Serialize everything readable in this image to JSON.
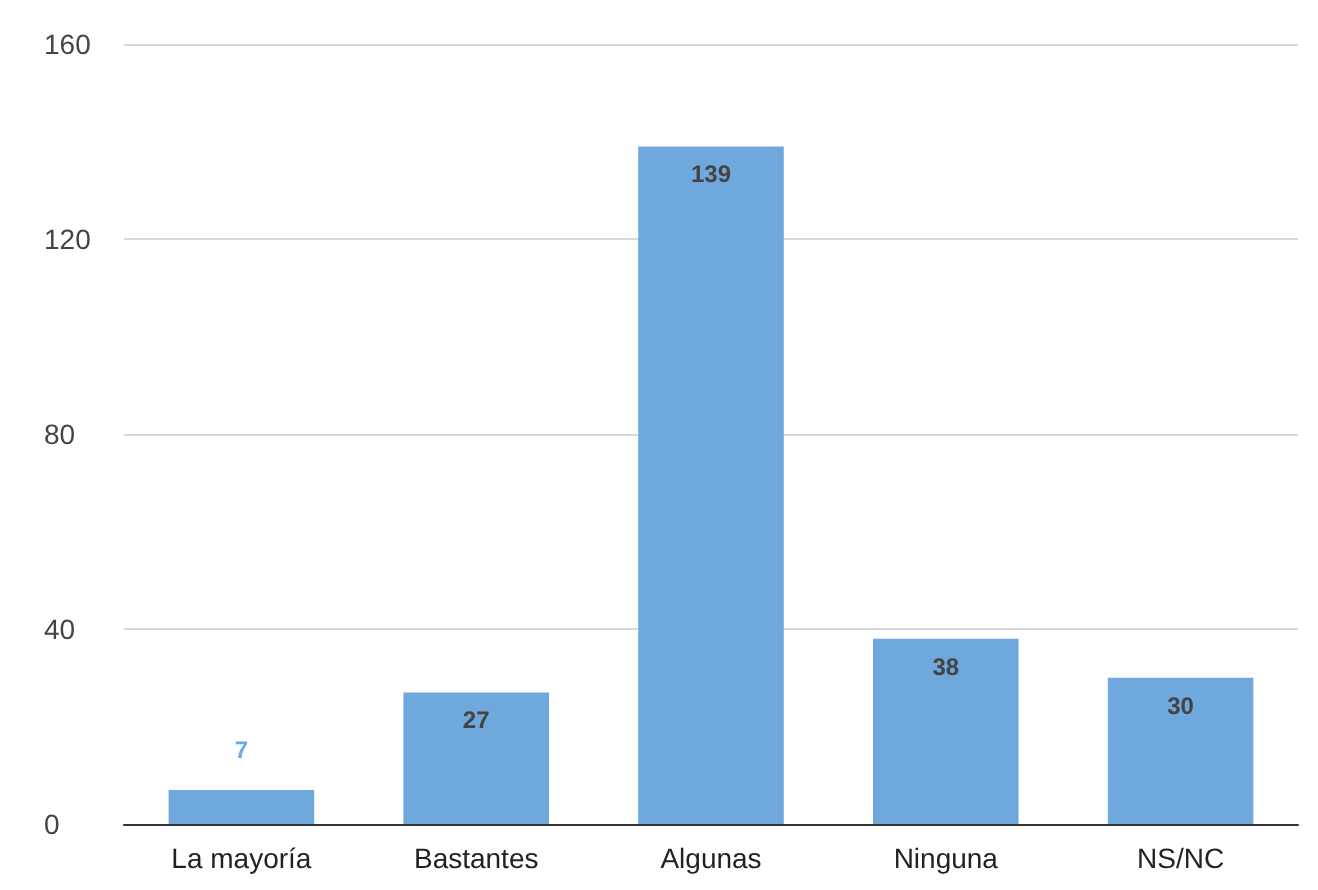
{
  "chart_data": {
    "type": "bar",
    "categories": [
      "La mayoría",
      "Bastantes",
      "Algunas",
      "Ninguna",
      "NS/NC"
    ],
    "values": [
      7,
      27,
      139,
      38,
      30
    ],
    "color": "#6fa8dc",
    "ylim": [
      0,
      160
    ],
    "yticks": [
      0,
      40,
      80,
      120,
      160
    ],
    "grid": "y",
    "data_labels": true
  }
}
